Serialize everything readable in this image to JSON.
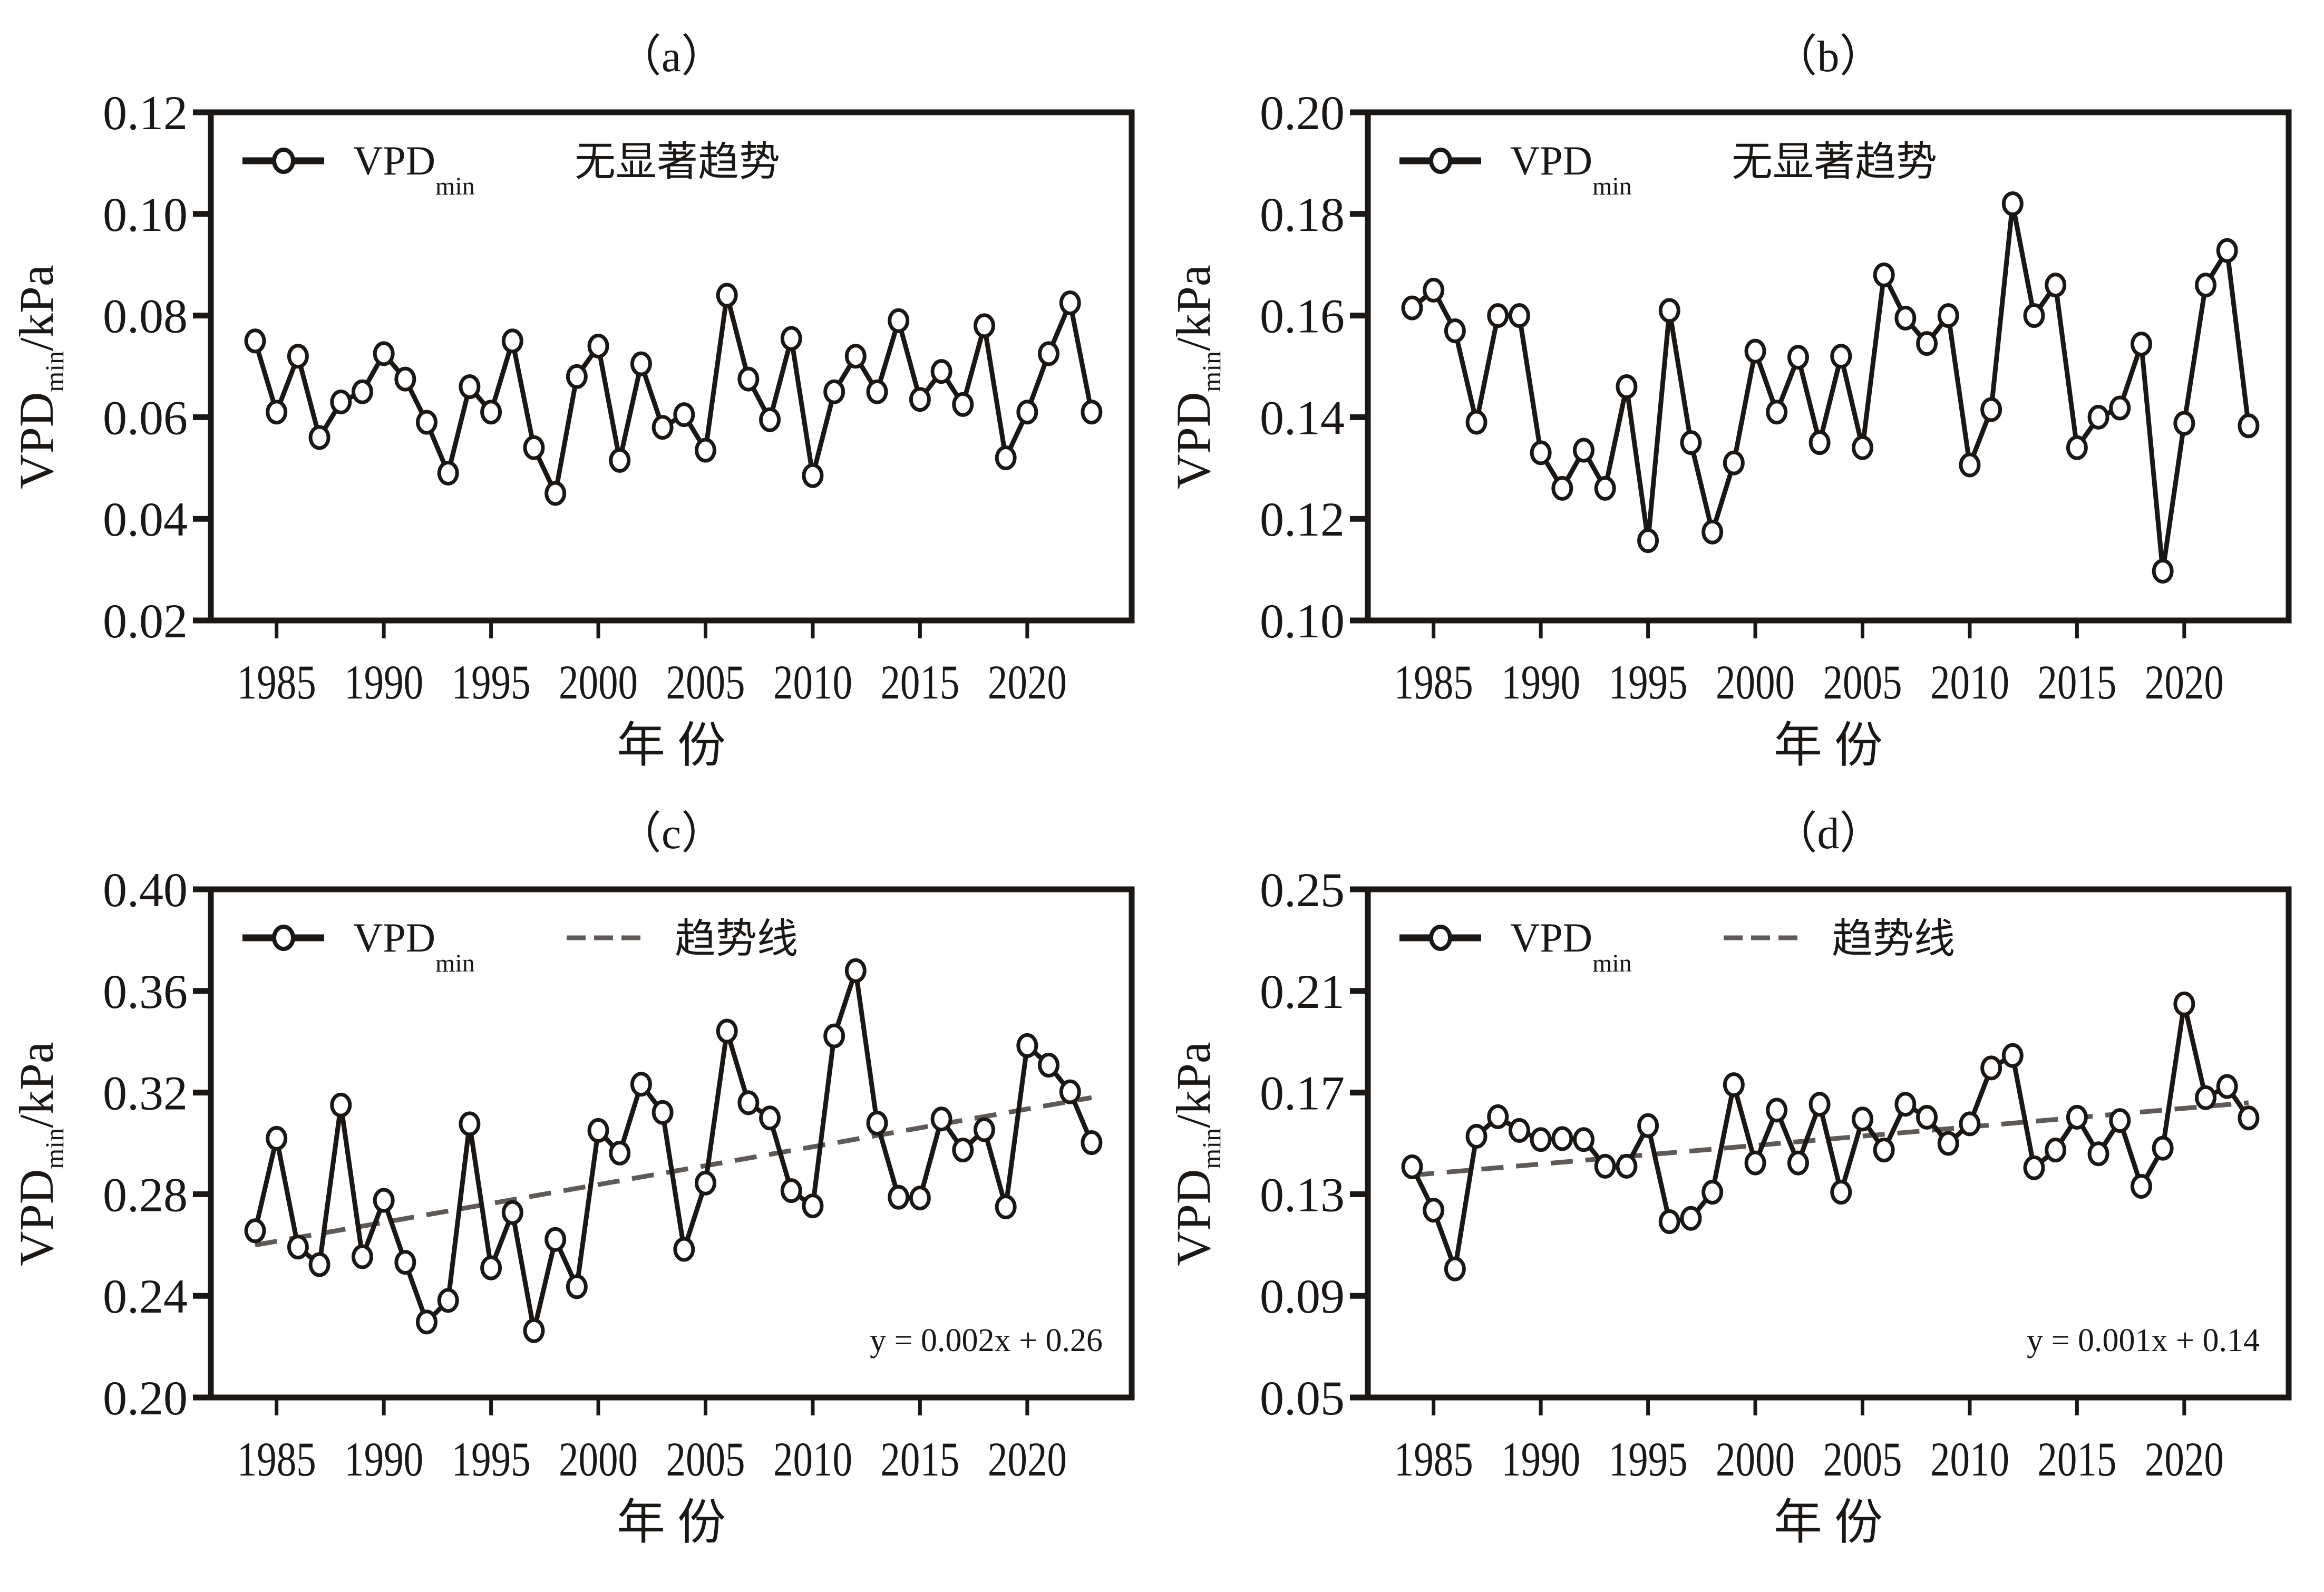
{
  "colors": {
    "line": "#1a1715",
    "trend": "#5f5a58",
    "marker_fill": "#ffffff"
  },
  "chart_data": [
    {
      "id": "a",
      "type": "line",
      "title": "（a）",
      "xlabel": "年 份",
      "ylabel": {
        "main": "VPD",
        "sub": "min",
        "unit": "/kPa"
      },
      "ylim": [
        0.02,
        0.12
      ],
      "yticks": [
        "0.02",
        "0.04",
        "0.06",
        "0.08",
        "0.10",
        "0.12"
      ],
      "xlim": [
        1982,
        2025
      ],
      "xticks": [
        "1985",
        "1990",
        "1995",
        "2000",
        "2005",
        "2010",
        "2015",
        "2020"
      ],
      "legend": {
        "series_main": "VPD",
        "series_sub": "min",
        "note": "无显著趋势",
        "position": "top-left"
      },
      "x": [
        1984,
        1985,
        1986,
        1987,
        1988,
        1989,
        1990,
        1991,
        1992,
        1993,
        1994,
        1995,
        1996,
        1997,
        1998,
        1999,
        2000,
        2001,
        2002,
        2003,
        2004,
        2005,
        2006,
        2007,
        2008,
        2009,
        2010,
        2011,
        2012,
        2013,
        2014,
        2015,
        2016,
        2017,
        2018,
        2019,
        2020,
        2021,
        2022,
        2023
      ],
      "series": [
        {
          "name": "VPDmin",
          "values": [
            0.075,
            0.061,
            0.072,
            0.056,
            0.063,
            0.065,
            0.0725,
            0.0675,
            0.059,
            0.049,
            0.066,
            0.061,
            0.075,
            0.054,
            0.045,
            0.068,
            0.074,
            0.0515,
            0.0705,
            0.058,
            0.0605,
            0.0535,
            0.084,
            0.0675,
            0.0595,
            0.0755,
            0.0485,
            0.065,
            0.072,
            0.065,
            0.079,
            0.0635,
            0.069,
            0.0625,
            0.078,
            0.052,
            0.061,
            0.0725,
            0.0825,
            0.061
          ]
        }
      ]
    },
    {
      "id": "b",
      "type": "line",
      "title": "（b）",
      "xlabel": "年 份",
      "ylabel": {
        "main": "VPD",
        "sub": "min",
        "unit": "/kPa"
      },
      "ylim": [
        0.1,
        0.2
      ],
      "yticks": [
        "0.10",
        "0.12",
        "0.14",
        "0.16",
        "0.18",
        "0.20"
      ],
      "xlim": [
        1982,
        2025
      ],
      "xticks": [
        "1985",
        "1990",
        "1995",
        "2000",
        "2005",
        "2010",
        "2015",
        "2020"
      ],
      "legend": {
        "series_main": "VPD",
        "series_sub": "min",
        "note": "无显著趋势",
        "position": "top-left"
      },
      "x": [
        1984,
        1985,
        1986,
        1987,
        1988,
        1989,
        1990,
        1991,
        1992,
        1993,
        1994,
        1995,
        1996,
        1997,
        1998,
        1999,
        2000,
        2001,
        2002,
        2003,
        2004,
        2005,
        2006,
        2007,
        2008,
        2009,
        2010,
        2011,
        2012,
        2013,
        2014,
        2015,
        2016,
        2017,
        2018,
        2019,
        2020,
        2021,
        2022,
        2023
      ],
      "series": [
        {
          "name": "VPDmin",
          "values": [
            0.1615,
            0.165,
            0.157,
            0.139,
            0.16,
            0.16,
            0.133,
            0.126,
            0.1335,
            0.126,
            0.146,
            0.1157,
            0.161,
            0.135,
            0.1174,
            0.131,
            0.153,
            0.141,
            0.1518,
            0.135,
            0.152,
            0.134,
            0.168,
            0.1595,
            0.1545,
            0.16,
            0.1306,
            0.1415,
            0.182,
            0.16,
            0.166,
            0.134,
            0.14,
            0.1418,
            0.1544,
            0.1097,
            0.1388,
            0.166,
            0.1728,
            0.1383
          ]
        }
      ]
    },
    {
      "id": "c",
      "type": "line",
      "title": "（c）",
      "xlabel": "年 份",
      "ylabel": {
        "main": "VPD",
        "sub": "min",
        "unit": "/kPa"
      },
      "ylim": [
        0.2,
        0.4
      ],
      "yticks": [
        "0.20",
        "0.24",
        "0.28",
        "0.32",
        "0.36",
        "0.40"
      ],
      "xlim": [
        1982,
        2025
      ],
      "xticks": [
        "1985",
        "1990",
        "1995",
        "2000",
        "2005",
        "2010",
        "2015",
        "2020"
      ],
      "legend": {
        "series_main": "VPD",
        "series_sub": "min",
        "trend_label": "趋势线",
        "position": "top-left"
      },
      "equation": "y = 0.002x + 0.26",
      "trend": {
        "start": [
          1984,
          0.26
        ],
        "end": [
          2023,
          0.318
        ]
      },
      "x": [
        1984,
        1985,
        1986,
        1987,
        1988,
        1989,
        1990,
        1991,
        1992,
        1993,
        1994,
        1995,
        1996,
        1997,
        1998,
        1999,
        2000,
        2001,
        2002,
        2003,
        2004,
        2005,
        2006,
        2007,
        2008,
        2009,
        2010,
        2011,
        2012,
        2013,
        2014,
        2015,
        2016,
        2017,
        2018,
        2019,
        2020,
        2021,
        2022,
        2023
      ],
      "series": [
        {
          "name": "VPDmin",
          "values": [
            0.2656,
            0.302,
            0.2592,
            0.2523,
            0.3151,
            0.2554,
            0.2776,
            0.2532,
            0.2297,
            0.2382,
            0.3077,
            0.251,
            0.2728,
            0.2263,
            0.2622,
            0.2436,
            0.3051,
            0.2962,
            0.3233,
            0.3122,
            0.2583,
            0.2844,
            0.3442,
            0.316,
            0.31,
            0.2814,
            0.2754,
            0.3423,
            0.368,
            0.308,
            0.2788,
            0.2785,
            0.3096,
            0.2974,
            0.3054,
            0.275,
            0.3385,
            0.3308,
            0.3203,
            0.3003
          ]
        }
      ]
    },
    {
      "id": "d",
      "type": "line",
      "title": "（d）",
      "xlabel": "年 份",
      "ylabel": {
        "main": "VPD",
        "sub": "min",
        "unit": "/kPa"
      },
      "ylim": [
        0.05,
        0.25
      ],
      "yticks": [
        "0.05",
        "0.09",
        "0.13",
        "0.17",
        "0.21",
        "0.25"
      ],
      "xlim": [
        1982,
        2025
      ],
      "xticks": [
        "1985",
        "1990",
        "1995",
        "2000",
        "2005",
        "2010",
        "2015",
        "2020"
      ],
      "legend": {
        "series_main": "VPD",
        "series_sub": "min",
        "trend_label": "趋势线",
        "position": "top-left"
      },
      "equation": "y = 0.001x + 0.14",
      "trend": {
        "start": [
          1984,
          0.1375
        ],
        "end": [
          2023,
          0.166
        ]
      },
      "x": [
        1984,
        1985,
        1986,
        1987,
        1988,
        1989,
        1990,
        1991,
        1992,
        1993,
        1994,
        1995,
        1996,
        1997,
        1998,
        1999,
        2000,
        2001,
        2002,
        2003,
        2004,
        2005,
        2006,
        2007,
        2008,
        2009,
        2010,
        2011,
        2012,
        2013,
        2014,
        2015,
        2016,
        2017,
        2018,
        2019,
        2020,
        2021,
        2022,
        2023
      ],
      "series": [
        {
          "name": "VPDmin",
          "values": [
            0.1408,
            0.1237,
            0.1006,
            0.1528,
            0.1605,
            0.1551,
            0.1515,
            0.1519,
            0.1515,
            0.141,
            0.141,
            0.157,
            0.1192,
            0.1205,
            0.1308,
            0.1731,
            0.1423,
            0.1631,
            0.1423,
            0.1654,
            0.1308,
            0.1596,
            0.1474,
            0.1654,
            0.1603,
            0.15,
            0.1577,
            0.1797,
            0.1846,
            0.1404,
            0.1474,
            0.1603,
            0.1459,
            0.159,
            0.1331,
            0.1481,
            0.2049,
            0.168,
            0.1724,
            0.16
          ]
        }
      ]
    }
  ]
}
